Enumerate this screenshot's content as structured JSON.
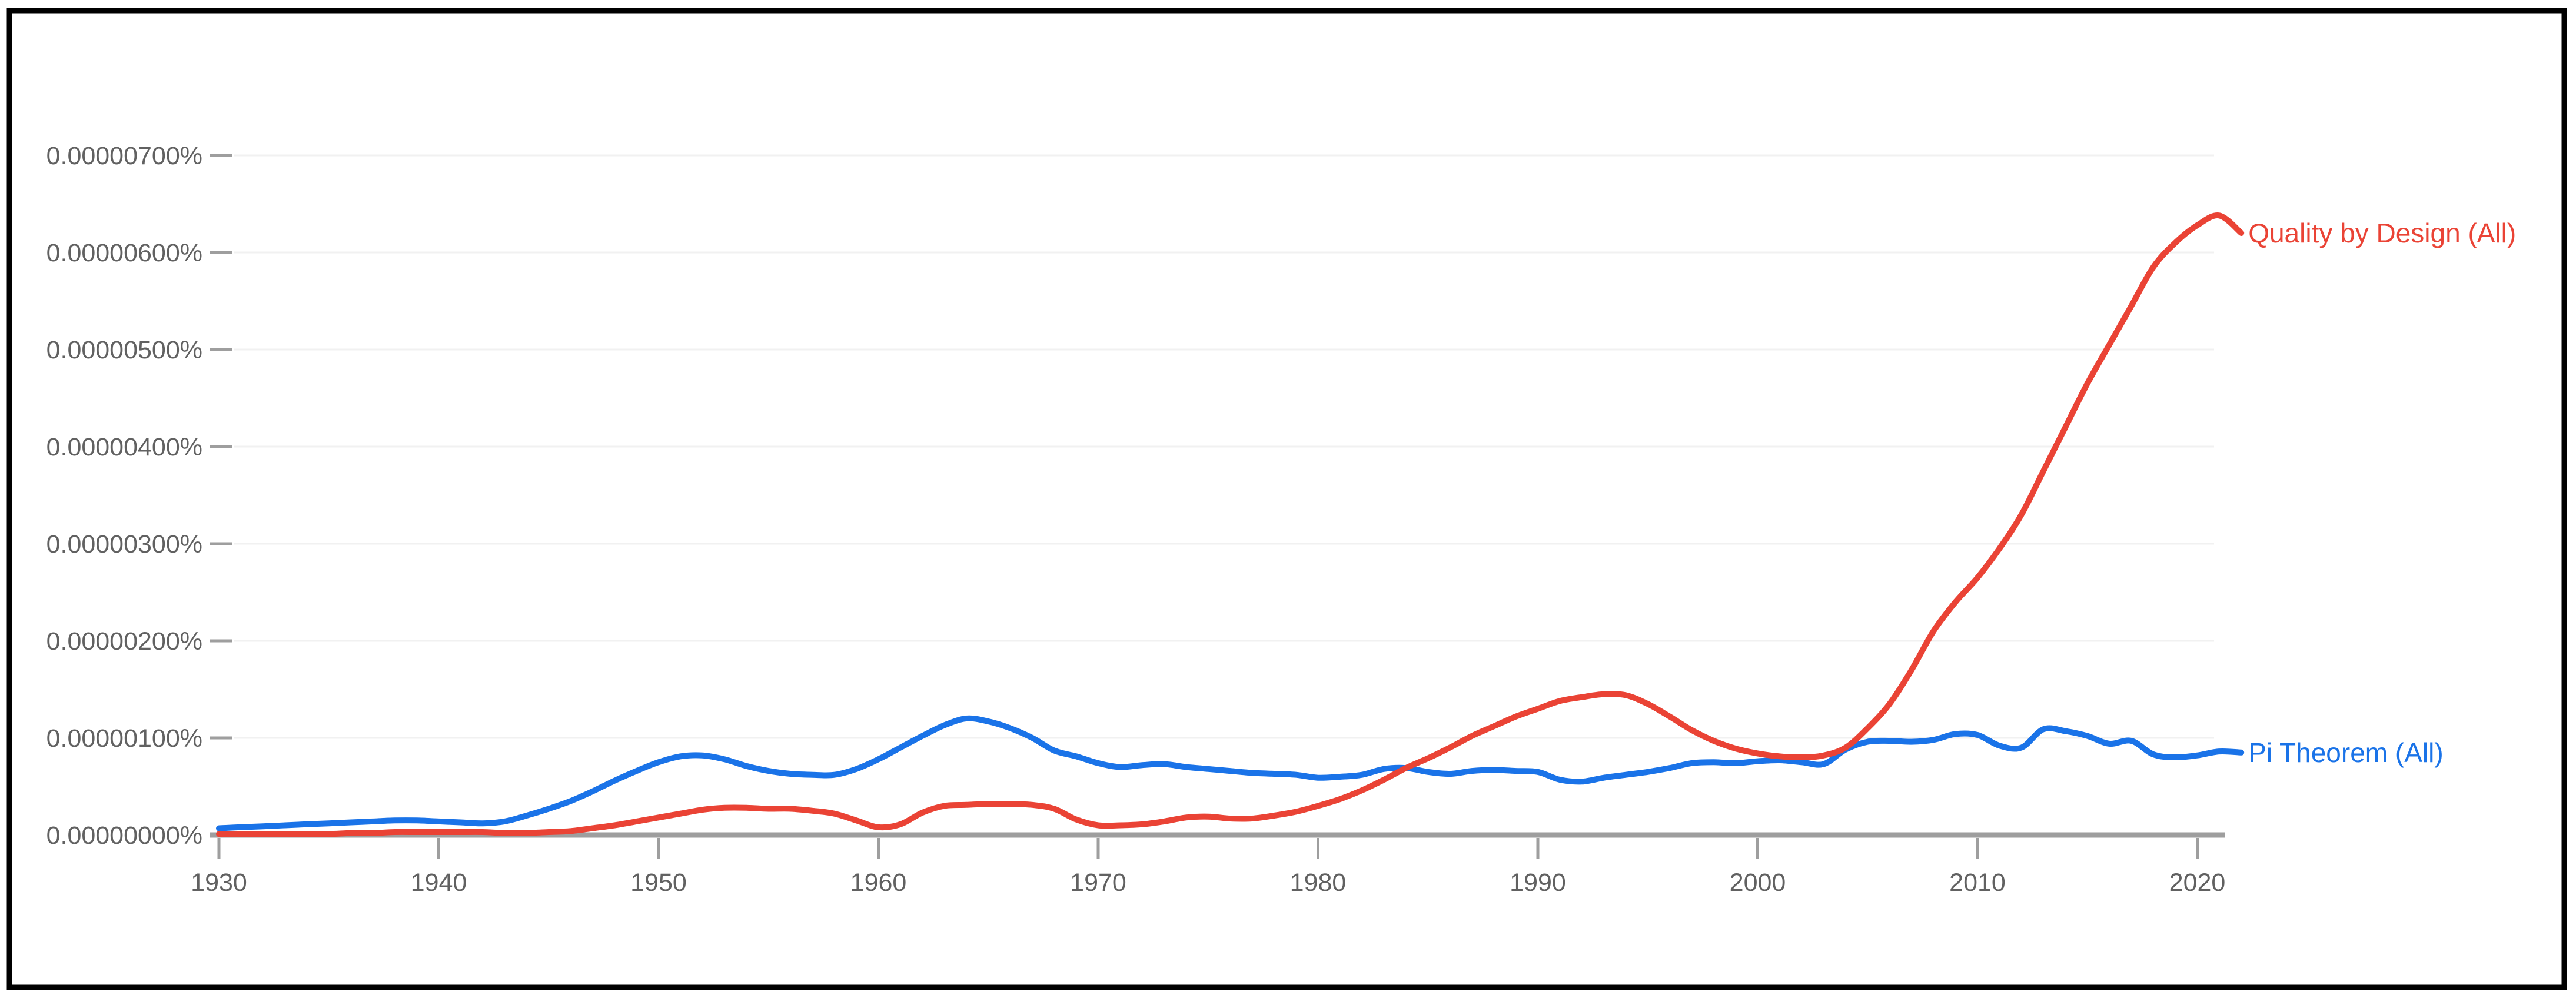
{
  "chart_data": {
    "type": "line",
    "title": "",
    "xlabel": "",
    "ylabel": "",
    "value_unit": "1e-8 percent (value 1.0 = 0.00000100%)",
    "x_start": 1930,
    "x_step": 1,
    "x_end": 2022,
    "ylim": [
      0,
      7.0
    ],
    "xlim": [
      1930,
      2022
    ],
    "grid": "horizontal-only",
    "legend_position": "line-end-labels-right",
    "y_ticks": [
      {
        "value": 0,
        "label": "0.00000000%"
      },
      {
        "value": 1,
        "label": "0.00000100%"
      },
      {
        "value": 2,
        "label": "0.00000200%"
      },
      {
        "value": 3,
        "label": "0.00000300%"
      },
      {
        "value": 4,
        "label": "0.00000400%"
      },
      {
        "value": 5,
        "label": "0.00000500%"
      },
      {
        "value": 6,
        "label": "0.00000600%"
      },
      {
        "value": 7,
        "label": "0.00000700%"
      }
    ],
    "x_ticks": [
      "1930",
      "1940",
      "1950",
      "1960",
      "1970",
      "1980",
      "1990",
      "2000",
      "2010",
      "2020"
    ],
    "series": [
      {
        "name": "Pi Theorem (All)",
        "color": "#1a73e8",
        "values": [
          0.07,
          0.08,
          0.09,
          0.1,
          0.11,
          0.12,
          0.13,
          0.14,
          0.15,
          0.15,
          0.14,
          0.13,
          0.12,
          0.14,
          0.2,
          0.27,
          0.35,
          0.45,
          0.56,
          0.66,
          0.75,
          0.81,
          0.82,
          0.78,
          0.71,
          0.66,
          0.63,
          0.62,
          0.62,
          0.68,
          0.78,
          0.9,
          1.02,
          1.13,
          1.2,
          1.17,
          1.1,
          1.0,
          0.87,
          0.81,
          0.74,
          0.7,
          0.72,
          0.73,
          0.7,
          0.68,
          0.66,
          0.64,
          0.63,
          0.62,
          0.59,
          0.6,
          0.62,
          0.68,
          0.69,
          0.65,
          0.63,
          0.66,
          0.67,
          0.66,
          0.65,
          0.57,
          0.55,
          0.59,
          0.62,
          0.65,
          0.69,
          0.74,
          0.75,
          0.74,
          0.76,
          0.77,
          0.75,
          0.73,
          0.88,
          0.96,
          0.97,
          0.96,
          0.98,
          1.04,
          1.03,
          0.92,
          0.9,
          1.09,
          1.07,
          1.02,
          0.94,
          0.97,
          0.83,
          0.8,
          0.82,
          0.86,
          0.85
        ]
      },
      {
        "name": "Quality by Design (All)",
        "color": "#ea4335",
        "values": [
          0.01,
          0.01,
          0.01,
          0.01,
          0.01,
          0.01,
          0.02,
          0.02,
          0.03,
          0.03,
          0.03,
          0.03,
          0.03,
          0.02,
          0.02,
          0.03,
          0.04,
          0.07,
          0.1,
          0.14,
          0.18,
          0.22,
          0.26,
          0.28,
          0.28,
          0.27,
          0.27,
          0.25,
          0.22,
          0.15,
          0.08,
          0.11,
          0.23,
          0.3,
          0.31,
          0.32,
          0.32,
          0.31,
          0.27,
          0.16,
          0.1,
          0.1,
          0.11,
          0.14,
          0.18,
          0.19,
          0.17,
          0.17,
          0.2,
          0.24,
          0.3,
          0.37,
          0.46,
          0.57,
          0.69,
          0.79,
          0.9,
          1.02,
          1.12,
          1.22,
          1.3,
          1.38,
          1.42,
          1.45,
          1.44,
          1.35,
          1.22,
          1.08,
          0.97,
          0.89,
          0.84,
          0.81,
          0.8,
          0.82,
          0.9,
          1.1,
          1.35,
          1.7,
          2.1,
          2.4,
          2.65,
          2.95,
          3.3,
          3.75,
          4.2,
          4.65,
          5.05,
          5.45,
          5.85,
          6.1,
          6.28,
          6.38,
          6.2
        ]
      }
    ]
  },
  "colors": {
    "grid_line": "#f1f1f1",
    "axis_line": "#9e9e9e",
    "tick_text": "#616161",
    "frame_border": "#000000",
    "background": "#ffffff",
    "series_blue": "#1a73e8",
    "series_red": "#ea4335"
  }
}
